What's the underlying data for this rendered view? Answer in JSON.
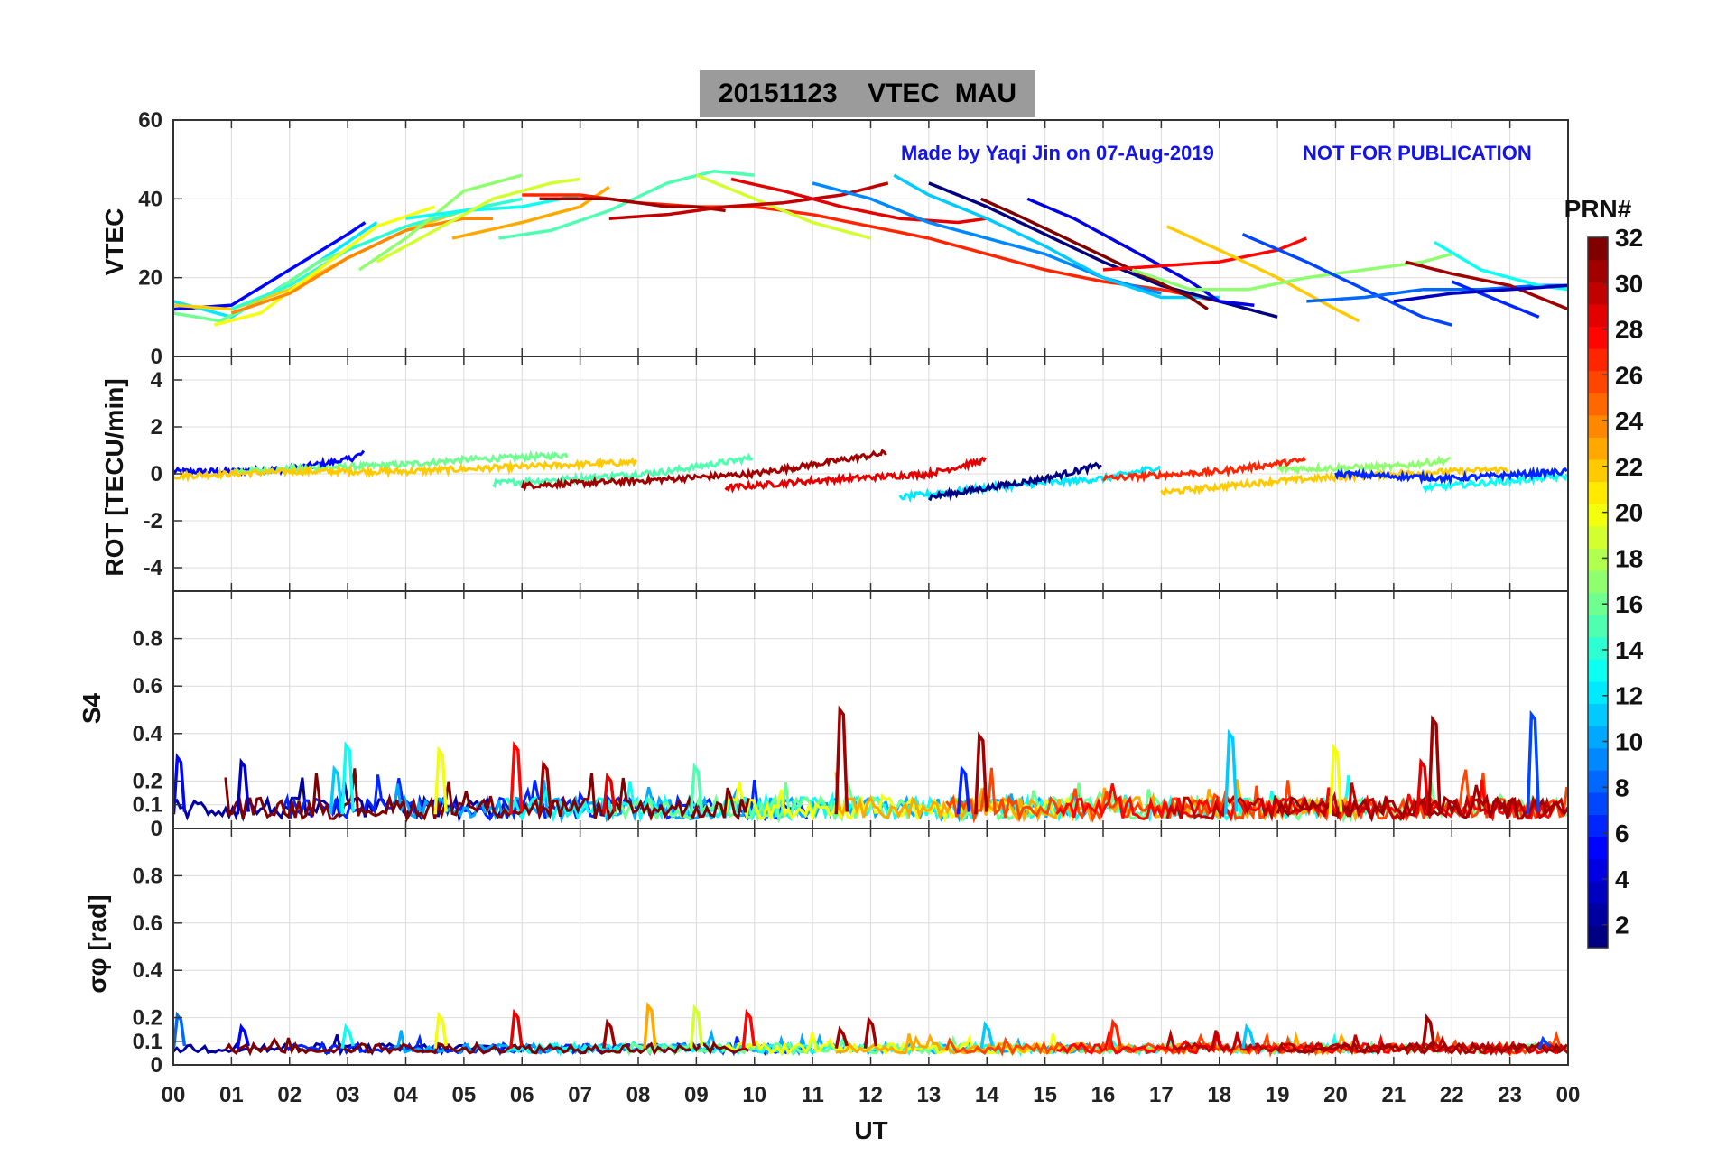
{
  "figure": {
    "title_date": "20151123",
    "title_param": "VTEC",
    "title_station": "MAU",
    "credit": "Made by Yaqi Jin on 07-Aug-2019",
    "watermark": "NOT FOR PUBLICATION",
    "xlabel": "UT",
    "colorbar_label": "PRN#",
    "colorbar_ticks": [
      "2",
      "4",
      "6",
      "8",
      "10",
      "12",
      "14",
      "16",
      "18",
      "20",
      "22",
      "24",
      "26",
      "28",
      "30",
      "32"
    ]
  },
  "chart_data": [
    {
      "type": "line",
      "panel": "vtec",
      "ylabel": "VTEC",
      "xlim": [
        0,
        24
      ],
      "ylim": [
        0,
        60
      ],
      "yticks": [
        "0",
        "20",
        "40",
        "60"
      ],
      "xticks": [
        "00",
        "01",
        "02",
        "03",
        "04",
        "05",
        "06",
        "07",
        "08",
        "09",
        "10",
        "11",
        "12",
        "13",
        "14",
        "15",
        "16",
        "17",
        "18",
        "19",
        "20",
        "21",
        "22",
        "23",
        "00"
      ],
      "color_by": "PRN",
      "series": [
        {
          "prn": 5,
          "x": [
            0.0,
            1.0,
            2.0,
            3.0,
            3.3
          ],
          "y": [
            12,
            13,
            22,
            31,
            34
          ]
        },
        {
          "prn": 12,
          "x": [
            0.0,
            1.0,
            2.0,
            3.0,
            3.5
          ],
          "y": [
            14,
            10,
            19,
            29,
            34
          ]
        },
        {
          "prn": 16,
          "x": [
            0.0,
            0.8,
            1.5,
            2.5,
            3.5
          ],
          "y": [
            11,
            9,
            14,
            24,
            30
          ]
        },
        {
          "prn": 22,
          "x": [
            0.0,
            1.0,
            2.0,
            3.0,
            4.0,
            5.0,
            6.0
          ],
          "y": [
            13,
            12,
            17,
            25,
            32,
            37,
            38
          ]
        },
        {
          "prn": 14,
          "x": [
            1.0,
            2.0,
            3.0,
            4.0,
            5.0,
            6.0
          ],
          "y": [
            12,
            18,
            27,
            33,
            37,
            40
          ]
        },
        {
          "prn": 20,
          "x": [
            0.7,
            1.5,
            2.5,
            3.5,
            4.5
          ],
          "y": [
            8,
            11,
            22,
            33,
            38
          ]
        },
        {
          "prn": 24,
          "x": [
            1.0,
            2.0,
            3.0,
            4.0,
            5.0,
            5.5
          ],
          "y": [
            11,
            16,
            25,
            32,
            35,
            35
          ]
        },
        {
          "prn": 17,
          "x": [
            3.2,
            4.0,
            5.0,
            6.0
          ],
          "y": [
            22,
            30,
            42,
            46
          ]
        },
        {
          "prn": 13,
          "x": [
            4.0,
            5.0,
            6.0,
            7.0
          ],
          "y": [
            35,
            37,
            38,
            41
          ]
        },
        {
          "prn": 19,
          "x": [
            3.5,
            4.5,
            5.5,
            6.5,
            7.0
          ],
          "y": [
            24,
            32,
            40,
            44,
            45
          ]
        },
        {
          "prn": 23,
          "x": [
            4.8,
            6.0,
            7.0,
            7.5
          ],
          "y": [
            30,
            34,
            38,
            43
          ]
        },
        {
          "prn": 15,
          "x": [
            5.6,
            6.5,
            7.5,
            8.5,
            9.3,
            10.0
          ],
          "y": [
            30,
            32,
            37,
            44,
            47,
            46
          ]
        },
        {
          "prn": 27,
          "x": [
            6.0,
            7.0,
            8.0,
            9.0,
            10.0,
            11.0,
            12.0,
            13.0,
            14.0,
            15.0,
            16.0,
            17.0,
            18.0
          ],
          "y": [
            41,
            41,
            39,
            38,
            38,
            36,
            33,
            30,
            26,
            22,
            19,
            17,
            14
          ]
        },
        {
          "prn": 31,
          "x": [
            6.3,
            7.0,
            7.5,
            8.0,
            8.5,
            9.0,
            9.5
          ],
          "y": [
            40,
            40,
            40,
            39,
            38,
            38,
            37
          ]
        },
        {
          "prn": 19,
          "x": [
            9.0,
            10.0,
            11.0,
            12.0
          ],
          "y": [
            46,
            40,
            34,
            30
          ]
        },
        {
          "prn": 30,
          "x": [
            7.5,
            8.5,
            9.5,
            10.5,
            11.5,
            12.3
          ],
          "y": [
            35,
            36,
            38,
            39,
            41,
            44
          ]
        },
        {
          "prn": 29,
          "x": [
            9.6,
            10.5,
            11.5,
            12.5,
            13.5,
            14.0
          ],
          "y": [
            45,
            42,
            38,
            35,
            34,
            35
          ]
        },
        {
          "prn": 9,
          "x": [
            11.0,
            12.0,
            13.0,
            14.0,
            15.0,
            16.0,
            17.0
          ],
          "y": [
            44,
            40,
            34,
            30,
            26,
            20,
            16
          ]
        },
        {
          "prn": 11,
          "x": [
            12.4,
            13.0,
            14.0,
            15.0,
            16.0,
            17.0,
            18.0
          ],
          "y": [
            46,
            41,
            35,
            28,
            20,
            15,
            15
          ]
        },
        {
          "prn": 1,
          "x": [
            13.0,
            14.0,
            15.0,
            16.0,
            17.0,
            18.0,
            19.0
          ],
          "y": [
            44,
            38,
            31,
            24,
            18,
            14,
            10
          ]
        },
        {
          "prn": 32,
          "x": [
            13.9,
            14.5,
            15.5,
            16.5,
            17.5,
            17.8
          ],
          "y": [
            40,
            36,
            29,
            22,
            15,
            12
          ]
        },
        {
          "prn": 4,
          "x": [
            14.7,
            15.5,
            16.5,
            17.5,
            18.0,
            18.6
          ],
          "y": [
            40,
            35,
            27,
            19,
            14,
            13
          ]
        },
        {
          "prn": 28,
          "x": [
            16.0,
            17.0,
            18.0,
            19.0,
            19.5
          ],
          "y": [
            22,
            23,
            24,
            27,
            30
          ]
        },
        {
          "prn": 22,
          "x": [
            17.1,
            18.0,
            19.0,
            20.0,
            20.4
          ],
          "y": [
            33,
            27,
            20,
            12,
            9
          ]
        },
        {
          "prn": 17,
          "x": [
            16.5,
            17.5,
            18.5,
            19.5,
            20.5,
            21.5,
            22.0
          ],
          "y": [
            22,
            17,
            17,
            20,
            22,
            24,
            26
          ]
        },
        {
          "prn": 7,
          "x": [
            18.4,
            19.5,
            20.5,
            21.5,
            22.0
          ],
          "y": [
            31,
            24,
            17,
            10,
            8
          ]
        },
        {
          "prn": 8,
          "x": [
            19.5,
            20.5,
            21.5,
            22.5,
            23.5,
            24.0
          ],
          "y": [
            14,
            15,
            17,
            17,
            18,
            18
          ]
        },
        {
          "prn": 31,
          "x": [
            21.2,
            22.0,
            23.0,
            24.0
          ],
          "y": [
            24,
            21,
            18,
            12
          ]
        },
        {
          "prn": 13,
          "x": [
            21.7,
            22.5,
            23.5,
            24.0
          ],
          "y": [
            29,
            22,
            18,
            17
          ]
        },
        {
          "prn": 6,
          "x": [
            22.0,
            23.0,
            23.5
          ],
          "y": [
            19,
            13,
            10
          ]
        },
        {
          "prn": 3,
          "x": [
            21.0,
            22.0,
            23.0,
            24.0
          ],
          "y": [
            14,
            16,
            17,
            18
          ]
        }
      ]
    },
    {
      "type": "line",
      "panel": "rot",
      "ylabel": "ROT [TECU/min]",
      "xlim": [
        0,
        24
      ],
      "ylim": [
        -5,
        5
      ],
      "yticks": [
        "-4",
        "-2",
        "0",
        "2",
        "4"
      ],
      "color_by": "PRN",
      "series": [
        {
          "prn": 5,
          "x": [
            0,
            1,
            2,
            3,
            3.3
          ],
          "y": [
            0.1,
            0.1,
            0.2,
            0.6,
            0.9
          ]
        },
        {
          "prn": 16,
          "x": [
            1,
            2,
            3,
            4,
            5,
            6,
            6.8
          ],
          "y": [
            0.1,
            0.2,
            0.3,
            0.4,
            0.6,
            0.7,
            0.8
          ]
        },
        {
          "prn": 22,
          "x": [
            0,
            2,
            4,
            6,
            8
          ],
          "y": [
            -0.1,
            0.1,
            0.1,
            0.3,
            0.5
          ]
        },
        {
          "prn": 15,
          "x": [
            5.5,
            7,
            8.5,
            10
          ],
          "y": [
            -0.4,
            -0.2,
            0.1,
            0.7
          ]
        },
        {
          "prn": 31,
          "x": [
            6,
            8,
            10,
            12.3
          ],
          "y": [
            -0.5,
            -0.3,
            0.0,
            0.9
          ]
        },
        {
          "prn": 29,
          "x": [
            9.5,
            11,
            13,
            14
          ],
          "y": [
            -0.6,
            -0.3,
            0.0,
            0.6
          ]
        },
        {
          "prn": 12,
          "x": [
            12.5,
            14,
            16,
            17
          ],
          "y": [
            -1.0,
            -0.6,
            -0.2,
            0.3
          ]
        },
        {
          "prn": 1,
          "x": [
            13,
            14,
            15,
            16
          ],
          "y": [
            -1.0,
            -0.6,
            -0.2,
            0.4
          ]
        },
        {
          "prn": 22,
          "x": [
            17,
            19,
            21,
            23
          ],
          "y": [
            -0.8,
            -0.3,
            0.0,
            0.2
          ]
        },
        {
          "prn": 27,
          "x": [
            16,
            18,
            19.5
          ],
          "y": [
            -0.2,
            0.1,
            0.6
          ]
        },
        {
          "prn": 17,
          "x": [
            19,
            21,
            22
          ],
          "y": [
            0.2,
            0.3,
            0.6
          ]
        },
        {
          "prn": 13,
          "x": [
            21.5,
            22.5,
            24
          ],
          "y": [
            -0.6,
            -0.4,
            -0.1
          ]
        },
        {
          "prn": 6,
          "x": [
            20,
            22,
            24
          ],
          "y": [
            0.0,
            -0.2,
            0.1
          ]
        }
      ]
    },
    {
      "type": "line",
      "panel": "s4",
      "ylabel": "S4",
      "xlim": [
        0,
        24
      ],
      "ylim": [
        0,
        1
      ],
      "yticks": [
        "0",
        "0.1",
        "0.2",
        "0.4",
        "0.6",
        "0.8"
      ],
      "color_by": "PRN",
      "peaks": [
        {
          "prn": 5,
          "x": 0.1,
          "y": 0.3
        },
        {
          "prn": 3,
          "x": 1.2,
          "y": 0.28
        },
        {
          "prn": 11,
          "x": 2.8,
          "y": 0.25
        },
        {
          "prn": 13,
          "x": 3.0,
          "y": 0.35
        },
        {
          "prn": 20,
          "x": 4.6,
          "y": 0.33
        },
        {
          "prn": 28,
          "x": 5.9,
          "y": 0.35
        },
        {
          "prn": 31,
          "x": 6.4,
          "y": 0.27
        },
        {
          "prn": 29,
          "x": 7.5,
          "y": 0.22
        },
        {
          "prn": 15,
          "x": 9.0,
          "y": 0.26
        },
        {
          "prn": 31,
          "x": 11.5,
          "y": 0.5
        },
        {
          "prn": 6,
          "x": 13.6,
          "y": 0.25
        },
        {
          "prn": 31,
          "x": 13.9,
          "y": 0.39
        },
        {
          "prn": 11,
          "x": 18.2,
          "y": 0.4
        },
        {
          "prn": 20,
          "x": 20.0,
          "y": 0.34
        },
        {
          "prn": 29,
          "x": 21.5,
          "y": 0.28
        },
        {
          "prn": 31,
          "x": 21.7,
          "y": 0.46
        },
        {
          "prn": 7,
          "x": 23.4,
          "y": 0.48
        }
      ]
    },
    {
      "type": "line",
      "panel": "sigma_phi",
      "ylabel": "σφ [rad]",
      "xlim": [
        0,
        24
      ],
      "ylim": [
        0,
        1
      ],
      "yticks": [
        "0",
        "0.1",
        "0.2",
        "0.4",
        "0.6",
        "0.8"
      ],
      "color_by": "PRN",
      "peaks": [
        {
          "prn": 8,
          "x": 0.1,
          "y": 0.21
        },
        {
          "prn": 5,
          "x": 1.2,
          "y": 0.16
        },
        {
          "prn": 13,
          "x": 3.0,
          "y": 0.16
        },
        {
          "prn": 20,
          "x": 4.6,
          "y": 0.21
        },
        {
          "prn": 29,
          "x": 5.9,
          "y": 0.22
        },
        {
          "prn": 31,
          "x": 7.5,
          "y": 0.18
        },
        {
          "prn": 23,
          "x": 8.2,
          "y": 0.25
        },
        {
          "prn": 19,
          "x": 9.0,
          "y": 0.24
        },
        {
          "prn": 28,
          "x": 9.9,
          "y": 0.22
        },
        {
          "prn": 31,
          "x": 11.5,
          "y": 0.15
        },
        {
          "prn": 31,
          "x": 12.0,
          "y": 0.19
        },
        {
          "prn": 11,
          "x": 14.0,
          "y": 0.17
        },
        {
          "prn": 27,
          "x": 16.2,
          "y": 0.18
        },
        {
          "prn": 11,
          "x": 18.5,
          "y": 0.16
        },
        {
          "prn": 31,
          "x": 21.6,
          "y": 0.2
        },
        {
          "prn": 7,
          "x": 23.6,
          "y": 0.11
        }
      ]
    }
  ]
}
